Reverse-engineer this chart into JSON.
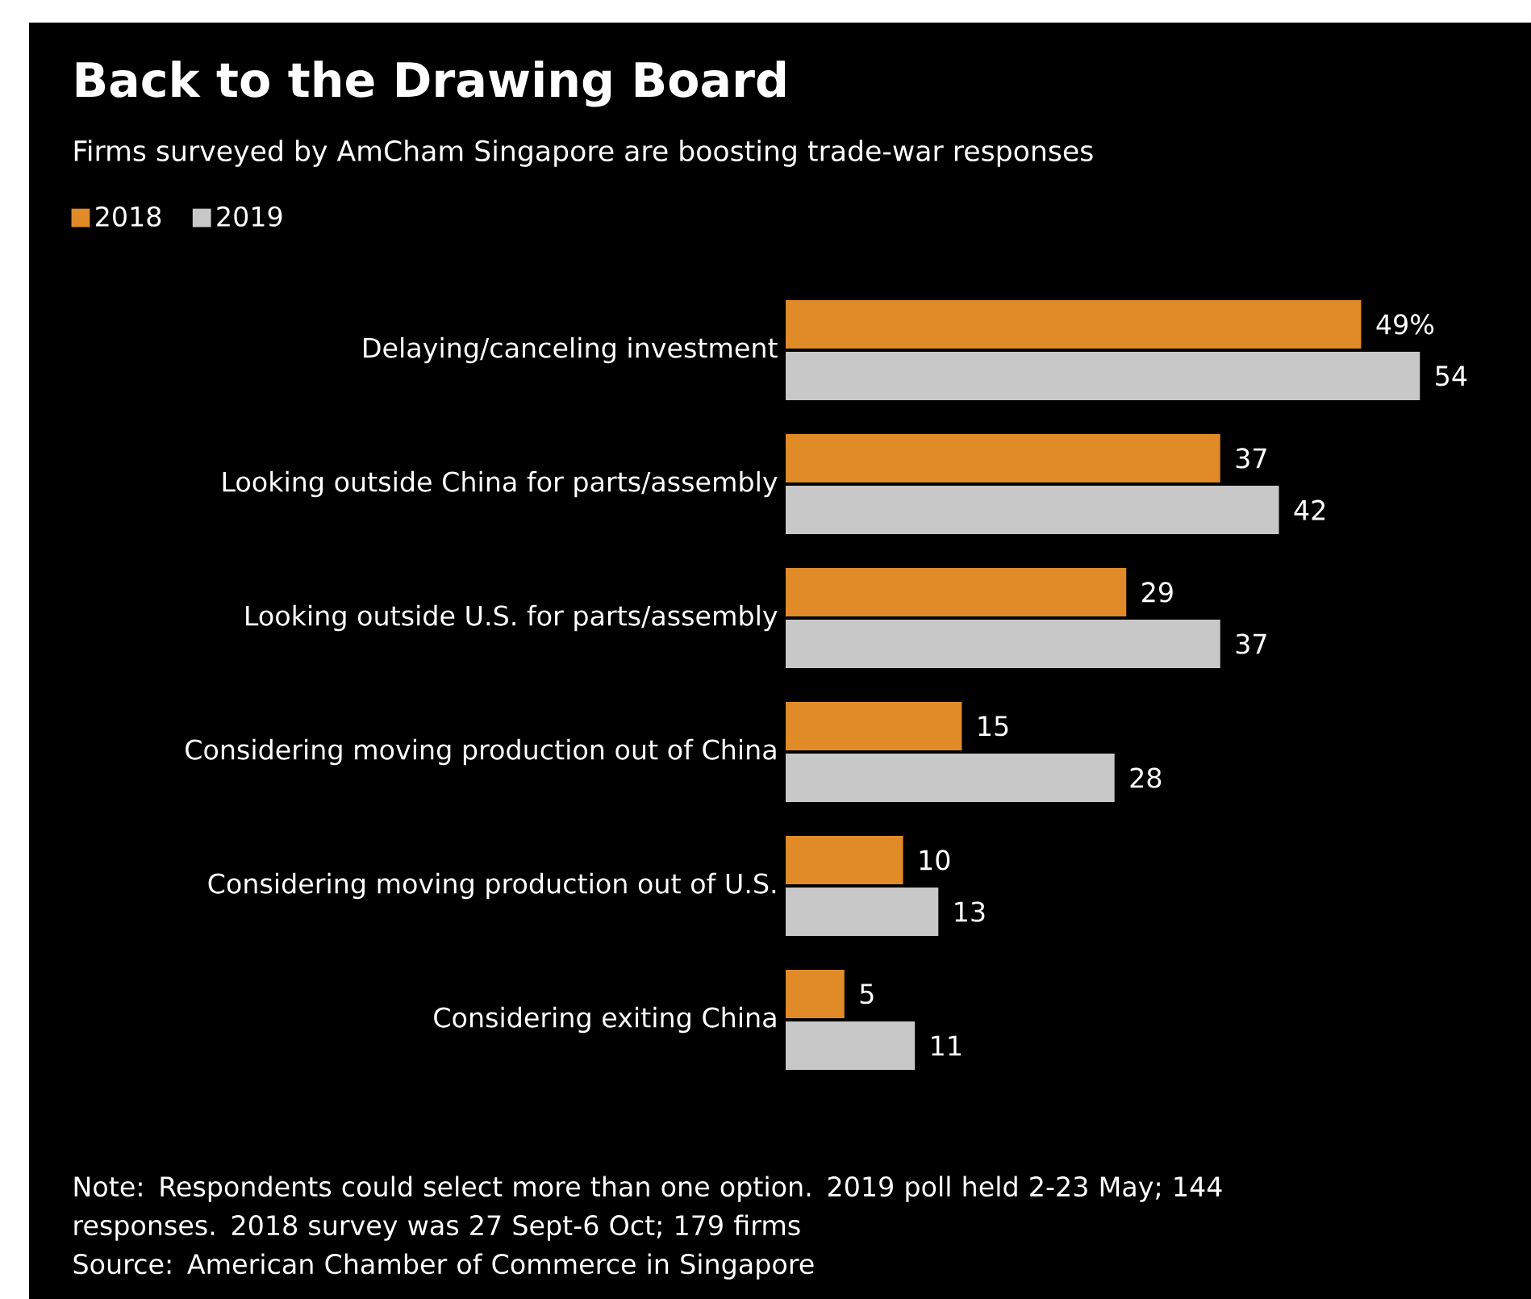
{
  "chart_data": {
    "type": "bar",
    "orientation": "horizontal",
    "title": "Back to the Drawing Board",
    "subtitle": "Firms surveyed by AmCham Singapore are boosting trade-war responses",
    "categories": [
      "Delaying/canceling investment",
      "Looking outside China for parts/assembly",
      "Looking outside U.S. for parts/assembly",
      "Considering moving production out of China",
      "Considering moving production out of U.S.",
      "Considering exiting China"
    ],
    "series": [
      {
        "name": "2018",
        "color": "#e08a28",
        "values": [
          49,
          37,
          29,
          15,
          10,
          5
        ],
        "value_labels": [
          "49%",
          "37",
          "29",
          "15",
          "10",
          "5"
        ]
      },
      {
        "name": "2019",
        "color": "#c8c8c8",
        "values": [
          54,
          42,
          37,
          28,
          13,
          11
        ],
        "value_labels": [
          "54",
          "42",
          "37",
          "28",
          "13",
          "11"
        ]
      }
    ],
    "legend": "top left",
    "annotations": [
      "Note: Respondents could select more than one option. 2019 poll held 2-23 May; 144 responses. 2018 survey was 27 Sept-6 Oct; 179 firms",
      "Source: American Chamber of Commerce in Singapore"
    ]
  }
}
